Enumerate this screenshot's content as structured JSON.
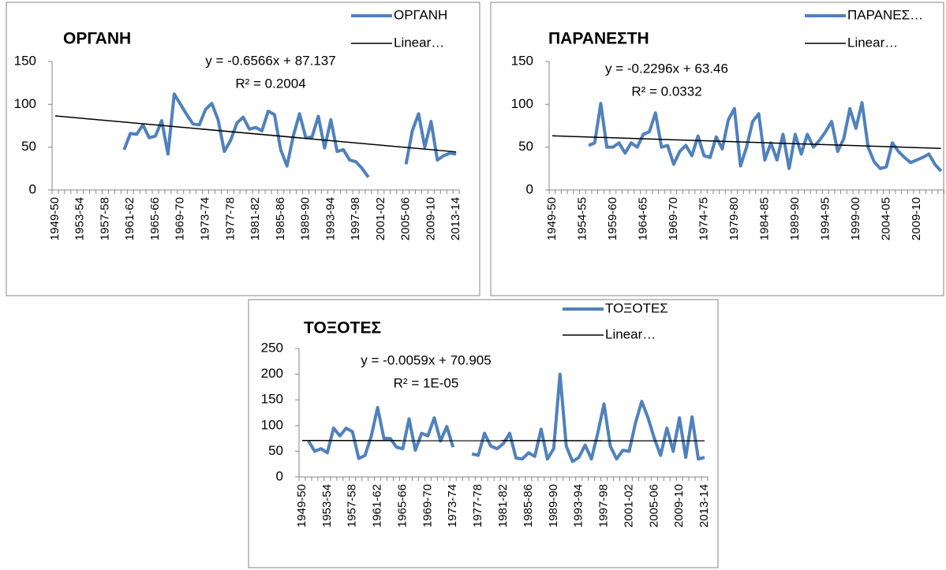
{
  "chart_data": [
    {
      "type": "line",
      "title": "ΟΡΓΑΝΗ",
      "categories": [
        "1949-50",
        null,
        null,
        null,
        "1953-54",
        null,
        null,
        null,
        "1957-58",
        null,
        null,
        null,
        "1961-62",
        null,
        null,
        null,
        "1965-66",
        null,
        null,
        null,
        "1969-70",
        null,
        null,
        null,
        "1973-74",
        null,
        null,
        null,
        "1977-78",
        null,
        null,
        null,
        "1981-82",
        null,
        null,
        null,
        "1985-86",
        null,
        null,
        null,
        "1989-90",
        null,
        null,
        null,
        "1993-94",
        null,
        null,
        null,
        "1997-98",
        null,
        null,
        null,
        "2001-02",
        null,
        null,
        null,
        "2005-06",
        null,
        null,
        null,
        "2009-10",
        null,
        null,
        null,
        "2013-14"
      ],
      "series": [
        {
          "name": "ΟΡΓΑΝΗ",
          "color": "#4f81bd",
          "values": [
            null,
            null,
            null,
            null,
            null,
            null,
            null,
            null,
            null,
            null,
            null,
            47,
            66,
            65,
            76,
            61,
            63,
            81,
            42,
            112,
            100,
            88,
            77,
            76,
            94,
            101,
            82,
            45,
            58,
            78,
            85,
            71,
            73,
            69,
            92,
            88,
            47,
            28,
            63,
            89,
            61,
            62,
            86,
            49,
            82,
            45,
            47,
            35,
            33,
            25,
            15,
            null,
            null,
            null,
            null,
            null,
            30,
            69,
            89,
            50,
            80,
            35,
            40,
            43,
            42
          ]
        }
      ],
      "trendline": {
        "name": "Linear…",
        "color": "#000000",
        "slope": -0.6566,
        "intercept": 87.137,
        "equation": "y = -0.6566x + 87.137",
        "r2": "R² = 0.2004"
      },
      "ylim": [
        0,
        150
      ],
      "yticks": [
        0,
        50,
        100,
        150
      ]
    },
    {
      "type": "line",
      "title": "ΠΑΡΑΝΕΣΤΗ",
      "categories": [
        "1949-50",
        null,
        null,
        null,
        null,
        "1954-55",
        null,
        null,
        null,
        null,
        "1959-60",
        null,
        null,
        null,
        null,
        "1964-65",
        null,
        null,
        null,
        null,
        "1969-70",
        null,
        null,
        null,
        null,
        "1974-75",
        null,
        null,
        null,
        null,
        "1979-80",
        null,
        null,
        null,
        null,
        "1984-85",
        null,
        null,
        null,
        null,
        "1989-90",
        null,
        null,
        null,
        null,
        "1994-95",
        null,
        null,
        null,
        null,
        "1999-00",
        null,
        null,
        null,
        null,
        "2004-05",
        null,
        null,
        null,
        null,
        "2009-10",
        null,
        null,
        null,
        null
      ],
      "series": [
        {
          "name": "ΠΑΡΑΝΕΣ…",
          "color": "#4f81bd",
          "values": [
            null,
            null,
            null,
            null,
            null,
            null,
            52,
            55,
            101,
            50,
            50,
            55,
            43,
            55,
            50,
            65,
            68,
            90,
            50,
            52,
            30,
            45,
            52,
            40,
            63,
            40,
            38,
            62,
            48,
            82,
            95,
            28,
            50,
            80,
            89,
            35,
            55,
            35,
            65,
            25,
            65,
            42,
            65,
            50,
            58,
            68,
            80,
            45,
            60,
            95,
            72,
            102,
            50,
            33,
            25,
            27,
            55,
            45,
            38,
            32,
            35,
            38,
            42,
            30,
            22
          ]
        }
      ],
      "trendline": {
        "name": "Linear…",
        "color": "#000000",
        "slope": -0.2296,
        "intercept": 63.46,
        "equation": "y = -0.2296x + 63.46",
        "r2": "R² = 0.0332"
      },
      "ylim": [
        0,
        150
      ],
      "yticks": [
        0,
        50,
        100,
        150
      ]
    },
    {
      "type": "line",
      "title": "ΤΟΞΟΤΕΣ",
      "categories": [
        "1949-50",
        null,
        null,
        null,
        "1953-54",
        null,
        null,
        null,
        "1957-58",
        null,
        null,
        null,
        "1961-62",
        null,
        null,
        null,
        "1965-66",
        null,
        null,
        null,
        "1969-70",
        null,
        null,
        null,
        "1973-74",
        null,
        null,
        null,
        "1977-78",
        null,
        null,
        null,
        "1981-82",
        null,
        null,
        null,
        "1985-86",
        null,
        null,
        null,
        "1989-90",
        null,
        null,
        null,
        "1993-94",
        null,
        null,
        null,
        "1997-98",
        null,
        null,
        null,
        "2001-02",
        null,
        null,
        null,
        "2005-06",
        null,
        null,
        null,
        "2009-10",
        null,
        null,
        null,
        "2013-14"
      ],
      "series": [
        {
          "name": "ΤΟΞΟΤΕΣ",
          "color": "#4f81bd",
          "values": [
            null,
            70,
            50,
            55,
            47,
            95,
            80,
            95,
            88,
            36,
            42,
            80,
            135,
            75,
            75,
            58,
            55,
            113,
            52,
            85,
            80,
            115,
            70,
            98,
            58,
            null,
            null,
            45,
            42,
            85,
            60,
            55,
            65,
            85,
            37,
            35,
            47,
            40,
            93,
            35,
            55,
            200,
            60,
            30,
            38,
            62,
            35,
            85,
            142,
            60,
            35,
            52,
            50,
            105,
            147,
            115,
            75,
            42,
            95,
            50,
            115,
            38,
            117,
            35,
            38
          ]
        }
      ],
      "trendline": {
        "name": "Linear…",
        "color": "#000000",
        "slope": -0.0059,
        "intercept": 70.905,
        "equation": "y = -0.0059x + 70.905",
        "r2": "R² = 1E-05"
      },
      "ylim": [
        0,
        250
      ],
      "yticks": [
        0,
        50,
        100,
        150,
        200,
        250
      ]
    }
  ]
}
